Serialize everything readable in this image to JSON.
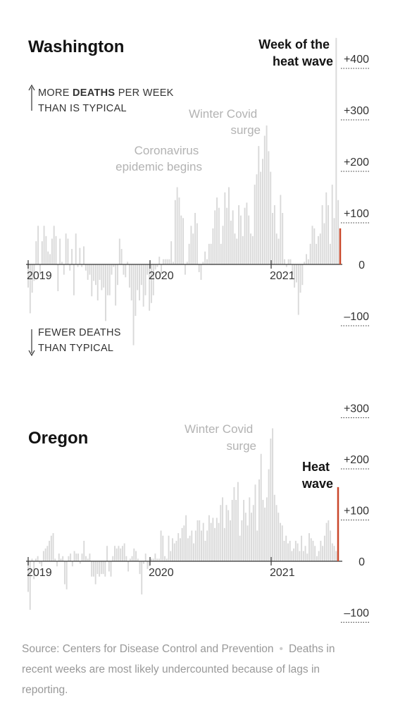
{
  "colors": {
    "bar": "#d9d9d9",
    "highlight": "#c9472a",
    "axis": "#333333",
    "note": "#b3b3b3"
  },
  "chart_data": [
    {
      "type": "bar",
      "title": "Washington",
      "heat_wave_label_lines": [
        "Week of the",
        "heat wave"
      ],
      "ylabel_up_lines": [
        "MORE ",
        "DEATHS",
        " PER WEEK",
        "THAN IS TYPICAL"
      ],
      "ylabel_down_lines": [
        "FEWER DEATHS",
        "THAN TYPICAL"
      ],
      "annotations": [
        {
          "lines": [
            "Coronavirus",
            "epidemic begins"
          ]
        },
        {
          "lines": [
            "Winter Covid",
            "surge"
          ]
        }
      ],
      "x_ticks": [
        "2019",
        "2020",
        "2021"
      ],
      "y_ticks": [
        {
          "value": 400,
          "label": "+400"
        },
        {
          "value": 300,
          "label": "+300"
        },
        {
          "value": 200,
          "label": "+200"
        },
        {
          "value": 100,
          "label": "+100"
        },
        {
          "value": 0,
          "label": "0"
        },
        {
          "value": -100,
          "label": "–100"
        }
      ],
      "ylim": [
        -160,
        440
      ],
      "grid": false,
      "highlight_last": true,
      "values": [
        -45,
        -95,
        -55,
        -32,
        45,
        75,
        -20,
        45,
        75,
        55,
        25,
        20,
        50,
        75,
        55,
        -52,
        50,
        5,
        -20,
        60,
        50,
        -12,
        30,
        -60,
        60,
        -5,
        32,
        -5,
        35,
        -12,
        -30,
        -20,
        -62,
        -32,
        -40,
        -70,
        -30,
        -50,
        -45,
        -110,
        -60,
        -60,
        -20,
        -5,
        -80,
        -40,
        50,
        30,
        -20,
        -25,
        5,
        -45,
        -70,
        -157,
        -100,
        -50,
        -70,
        -40,
        -82,
        -60,
        -20,
        -90,
        -75,
        -60,
        -10,
        -5,
        15,
        -20,
        10,
        10,
        10,
        10,
        45,
        5,
        125,
        150,
        130,
        95,
        90,
        -20,
        5,
        40,
        75,
        60,
        100,
        80,
        -15,
        -30,
        5,
        25,
        10,
        40,
        40,
        70,
        105,
        130,
        110,
        40,
        75,
        140,
        110,
        150,
        85,
        105,
        60,
        50,
        115,
        95,
        55,
        110,
        120,
        95,
        60,
        55,
        155,
        175,
        230,
        180,
        205,
        250,
        270,
        220,
        180,
        100,
        115,
        60,
        50,
        135,
        100,
        10,
        -5,
        10,
        10,
        -20,
        -45,
        -35,
        -98,
        -55,
        -40,
        5,
        20,
        10,
        40,
        75,
        70,
        40,
        55,
        60,
        115,
        80,
        140,
        115,
        40,
        155,
        90,
        440,
        125,
        70
      ]
    },
    {
      "type": "bar",
      "title": "Oregon",
      "heat_wave_label_lines": [
        "Heat",
        "wave"
      ],
      "annotations": [
        {
          "lines": [
            "Winter Covid",
            "surge"
          ]
        }
      ],
      "x_ticks": [
        "2019",
        "2020",
        "2021"
      ],
      "y_ticks": [
        {
          "value": 300,
          "label": "+300"
        },
        {
          "value": 200,
          "label": "+200"
        },
        {
          "value": 100,
          "label": "+100"
        },
        {
          "value": 0,
          "label": "0"
        },
        {
          "value": -100,
          "label": "–100"
        }
      ],
      "ylim": [
        -130,
        310
      ],
      "grid": false,
      "highlight_last": true,
      "values": [
        -60,
        -95,
        5,
        -35,
        5,
        10,
        -5,
        -10,
        20,
        25,
        30,
        40,
        50,
        55,
        5,
        -10,
        15,
        5,
        10,
        -45,
        -55,
        10,
        15,
        -10,
        20,
        15,
        15,
        -5,
        15,
        40,
        10,
        5,
        15,
        -30,
        -30,
        -45,
        -25,
        -30,
        -25,
        -25,
        -30,
        30,
        -20,
        -30,
        10,
        30,
        25,
        30,
        25,
        30,
        35,
        10,
        -20,
        5,
        10,
        25,
        20,
        5,
        -25,
        -65,
        -5,
        15,
        -15,
        -10,
        5,
        5,
        15,
        5,
        5,
        60,
        50,
        10,
        5,
        50,
        20,
        45,
        35,
        40,
        55,
        45,
        65,
        70,
        90,
        45,
        50,
        60,
        35,
        60,
        80,
        80,
        60,
        75,
        40,
        60,
        90,
        75,
        85,
        65,
        85,
        75,
        110,
        125,
        65,
        110,
        100,
        80,
        120,
        145,
        120,
        155,
        50,
        80,
        120,
        95,
        70,
        125,
        95,
        110,
        150,
        60,
        160,
        210,
        120,
        105,
        125,
        180,
        240,
        260,
        130,
        110,
        95,
        75,
        70,
        40,
        50,
        35,
        40,
        20,
        25,
        40,
        35,
        20,
        50,
        20,
        30,
        15,
        55,
        45,
        40,
        30,
        10,
        20,
        40,
        30,
        50,
        75,
        80,
        60,
        35,
        30,
        20,
        145
      ]
    }
  ],
  "footer": {
    "source": "Source: Centers for Disease Control and Prevention",
    "separator": "•",
    "note": "Deaths in recent weeks are most likely undercounted because of lags in reporting."
  }
}
